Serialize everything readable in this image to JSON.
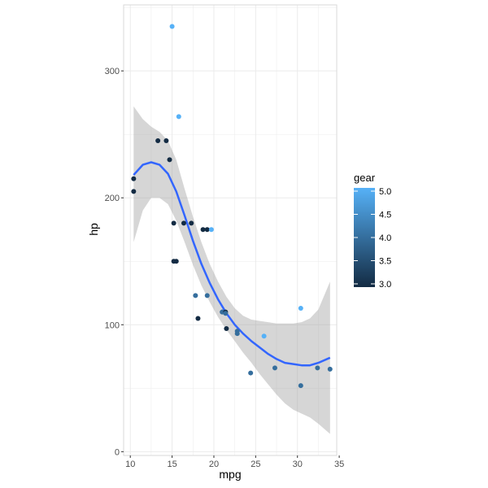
{
  "chart_data": {
    "type": "scatter",
    "xlabel": "mpg",
    "ylabel": "hp",
    "xlim": [
      9.2,
      34.7
    ],
    "ylim": [
      -3,
      352
    ],
    "x_ticks": [
      10,
      15,
      20,
      25,
      30,
      35
    ],
    "y_ticks": [
      0,
      100,
      200,
      300
    ],
    "grid": true,
    "legend": {
      "title": "gear",
      "position": "right",
      "type": "colorbar",
      "range": [
        3.0,
        5.0
      ],
      "ticks": [
        "3.0",
        "3.5",
        "4.0",
        "4.5",
        "5.0"
      ],
      "color_low": "#132b43",
      "color_high": "#56b1f7"
    },
    "points": [
      {
        "x": 21.0,
        "y": 110,
        "gear": 4
      },
      {
        "x": 21.0,
        "y": 110,
        "gear": 4
      },
      {
        "x": 22.8,
        "y": 93,
        "gear": 4
      },
      {
        "x": 21.4,
        "y": 110,
        "gear": 3
      },
      {
        "x": 18.7,
        "y": 175,
        "gear": 3
      },
      {
        "x": 18.1,
        "y": 105,
        "gear": 3
      },
      {
        "x": 14.3,
        "y": 245,
        "gear": 3
      },
      {
        "x": 24.4,
        "y": 62,
        "gear": 4
      },
      {
        "x": 22.8,
        "y": 95,
        "gear": 4
      },
      {
        "x": 19.2,
        "y": 123,
        "gear": 4
      },
      {
        "x": 17.8,
        "y": 123,
        "gear": 4
      },
      {
        "x": 16.4,
        "y": 180,
        "gear": 3
      },
      {
        "x": 17.3,
        "y": 180,
        "gear": 3
      },
      {
        "x": 15.2,
        "y": 180,
        "gear": 3
      },
      {
        "x": 10.4,
        "y": 205,
        "gear": 3
      },
      {
        "x": 10.4,
        "y": 215,
        "gear": 3
      },
      {
        "x": 14.7,
        "y": 230,
        "gear": 3
      },
      {
        "x": 32.4,
        "y": 66,
        "gear": 4
      },
      {
        "x": 30.4,
        "y": 52,
        "gear": 4
      },
      {
        "x": 33.9,
        "y": 65,
        "gear": 4
      },
      {
        "x": 21.5,
        "y": 97,
        "gear": 3
      },
      {
        "x": 15.5,
        "y": 150,
        "gear": 3
      },
      {
        "x": 15.2,
        "y": 150,
        "gear": 3
      },
      {
        "x": 13.3,
        "y": 245,
        "gear": 3
      },
      {
        "x": 19.2,
        "y": 175,
        "gear": 3
      },
      {
        "x": 27.3,
        "y": 66,
        "gear": 4
      },
      {
        "x": 26.0,
        "y": 91,
        "gear": 5
      },
      {
        "x": 30.4,
        "y": 113,
        "gear": 5
      },
      {
        "x": 15.8,
        "y": 264,
        "gear": 5
      },
      {
        "x": 19.7,
        "y": 175,
        "gear": 5
      },
      {
        "x": 15.0,
        "y": 335,
        "gear": 5
      },
      {
        "x": 21.4,
        "y": 109,
        "gear": 4
      }
    ],
    "smooth": {
      "method": "loess",
      "color": "#3366ff",
      "ribbon_color": "#999999",
      "curve": [
        {
          "x": 10.4,
          "y": 218,
          "ymin": 165,
          "ymax": 272
        },
        {
          "x": 11.5,
          "y": 226,
          "ymin": 190,
          "ymax": 262
        },
        {
          "x": 12.5,
          "y": 228,
          "ymin": 200,
          "ymax": 256
        },
        {
          "x": 13.5,
          "y": 226,
          "ymin": 200,
          "ymax": 252
        },
        {
          "x": 14.5,
          "y": 219,
          "ymin": 195,
          "ymax": 245
        },
        {
          "x": 15.5,
          "y": 205,
          "ymin": 182,
          "ymax": 230
        },
        {
          "x": 16.5,
          "y": 186,
          "ymin": 165,
          "ymax": 207
        },
        {
          "x": 17.5,
          "y": 166,
          "ymin": 147,
          "ymax": 185
        },
        {
          "x": 18.5,
          "y": 148,
          "ymin": 131,
          "ymax": 165
        },
        {
          "x": 19.5,
          "y": 133,
          "ymin": 118,
          "ymax": 148
        },
        {
          "x": 20.5,
          "y": 120,
          "ymin": 106,
          "ymax": 134
        },
        {
          "x": 21.5,
          "y": 109,
          "ymin": 96,
          "ymax": 122
        },
        {
          "x": 22.5,
          "y": 100,
          "ymin": 87,
          "ymax": 113
        },
        {
          "x": 23.5,
          "y": 93,
          "ymin": 78,
          "ymax": 107
        },
        {
          "x": 24.5,
          "y": 87,
          "ymin": 70,
          "ymax": 104
        },
        {
          "x": 25.5,
          "y": 82,
          "ymin": 61,
          "ymax": 103
        },
        {
          "x": 26.5,
          "y": 77,
          "ymin": 53,
          "ymax": 102
        },
        {
          "x": 27.5,
          "y": 73,
          "ymin": 45,
          "ymax": 101
        },
        {
          "x": 28.5,
          "y": 70,
          "ymin": 38,
          "ymax": 101
        },
        {
          "x": 29.5,
          "y": 69,
          "ymin": 33,
          "ymax": 101
        },
        {
          "x": 30.5,
          "y": 68,
          "ymin": 30,
          "ymax": 102
        },
        {
          "x": 31.5,
          "y": 68,
          "ymin": 27,
          "ymax": 105
        },
        {
          "x": 32.5,
          "y": 70,
          "ymin": 22,
          "ymax": 112
        },
        {
          "x": 33.9,
          "y": 74,
          "ymin": 14,
          "ymax": 134
        }
      ]
    }
  }
}
